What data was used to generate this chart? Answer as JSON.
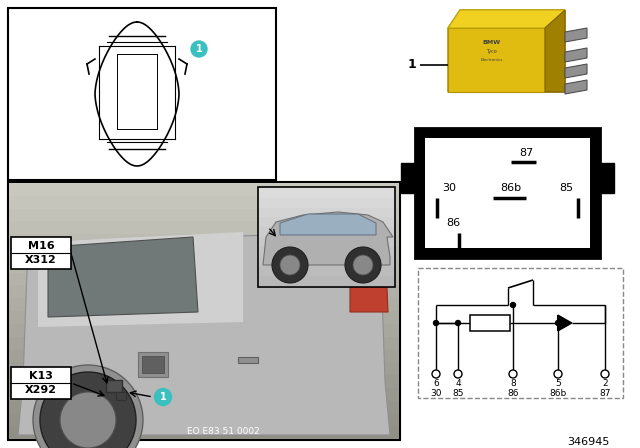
{
  "bg_color": "#ffffff",
  "part_number": "346945",
  "diagram_ref": "EO E83 51 0002",
  "teal_color": "#3bbfbf",
  "relay_yellow": "#d4aa00",
  "relay_yellow_light": "#e8c820",
  "relay_yellow_dark": "#b09000",
  "black": "#000000",
  "white": "#ffffff",
  "light_gray": "#c8c8c8",
  "mid_gray": "#a0a0a0",
  "dark_gray": "#606060",
  "pin_box_top_label": "87",
  "pin_box_left_label": "30",
  "pin_box_mid_label": "86b",
  "pin_box_right_label": "85",
  "pin_box_bot_label": "86",
  "box1_line1": "M16",
  "box1_line2": "X312",
  "box2_line1": "K13",
  "box2_line2": "X292",
  "circuit_pins": [
    "6",
    "4",
    "8",
    "5",
    "2"
  ],
  "circuit_labels": [
    "30",
    "85",
    "86",
    "86b",
    "87"
  ]
}
